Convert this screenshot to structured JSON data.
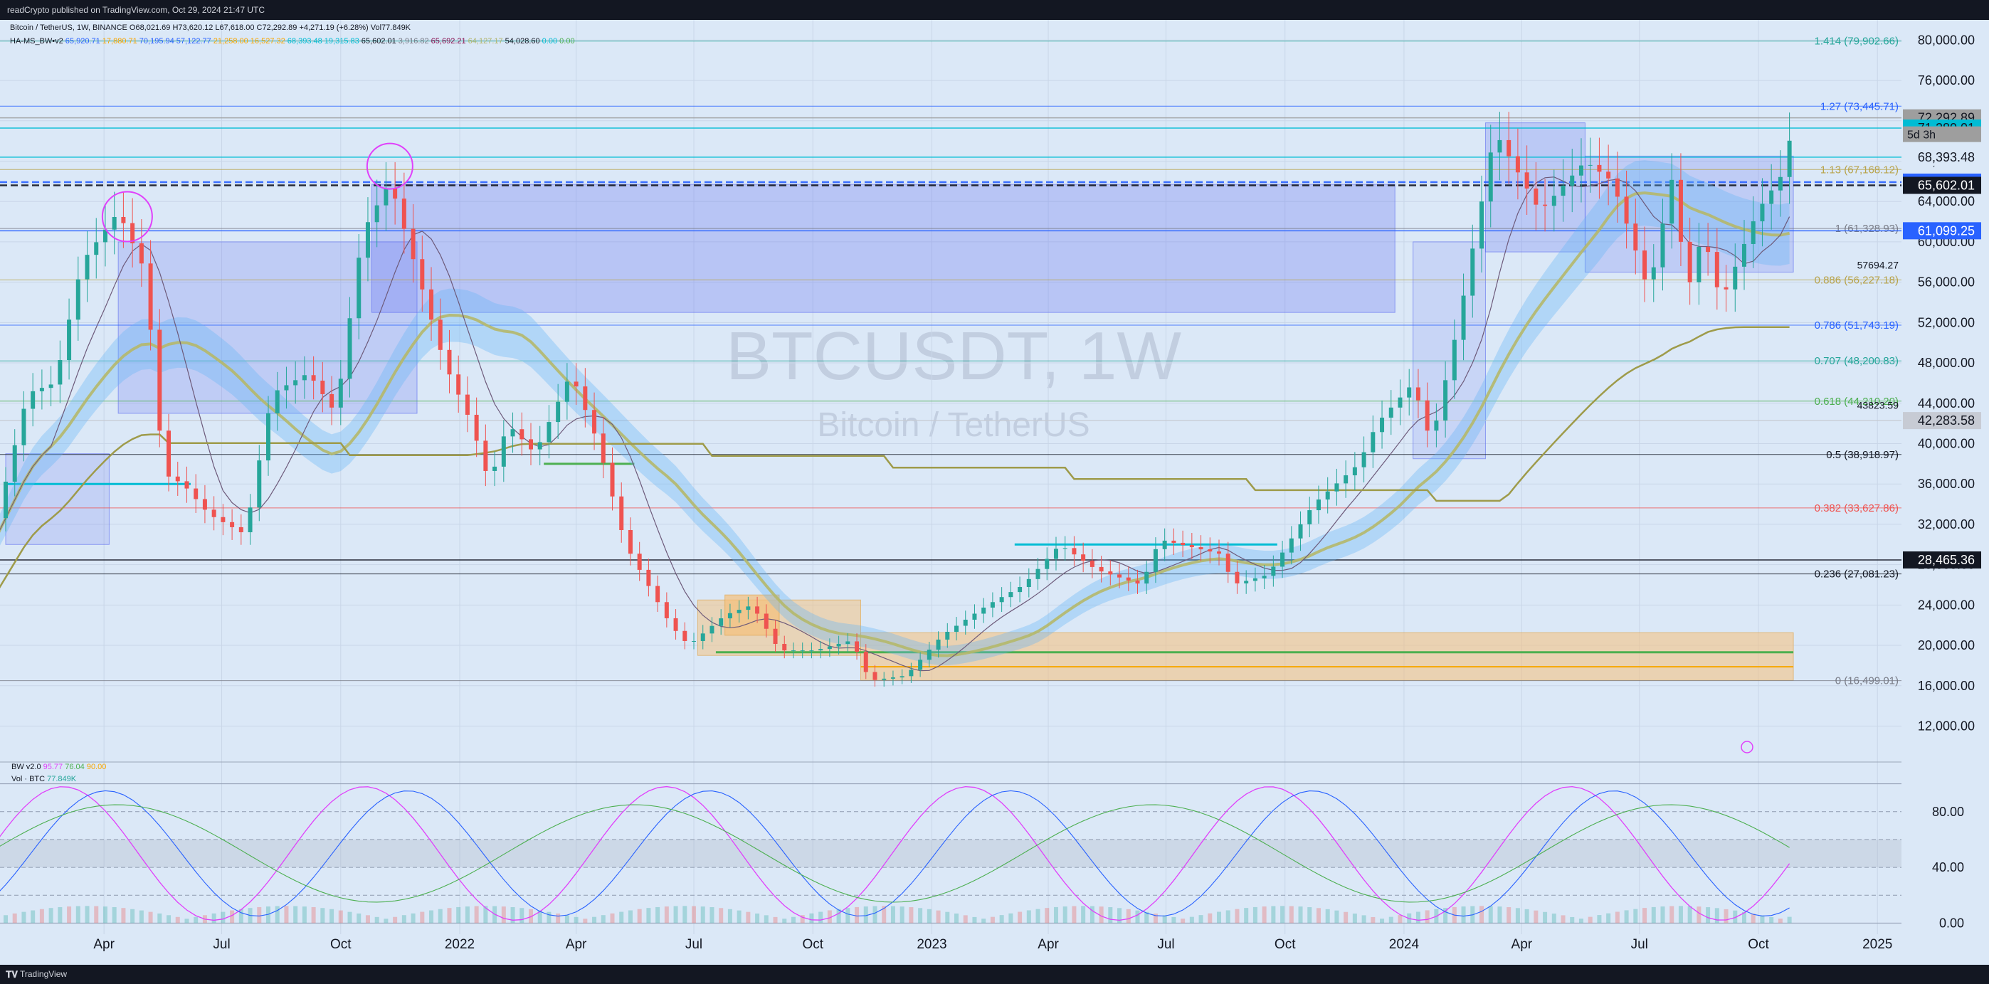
{
  "header": {
    "published": "readCrypto published on TradingView.com, Oct 29, 2024 21:47 UTC",
    "legend_line1_prefix": "Bitcoin / TetherUS, 1W, BINANCE",
    "legend_line1_ohlc": "O68,021.69 H73,620.12 L67,618.00 C72,292.89 +4,271.19 (+6.28%) Vol77.849K",
    "legend_line2_prefix": "HA-MS_BW•v2",
    "legend_line2_values": [
      {
        "text": "65,920.71",
        "color": "#2962ff"
      },
      {
        "text": "17,880.71",
        "color": "#f7a600"
      },
      {
        "text": "70,195.94",
        "color": "#2962ff"
      },
      {
        "text": "57,122.77",
        "color": "#2962ff"
      },
      {
        "text": "21,258.00",
        "color": "#f7a600"
      },
      {
        "text": "16,527.32",
        "color": "#f7a600"
      },
      {
        "text": "68,393.48",
        "color": "#00bcd4"
      },
      {
        "text": "19,315.83",
        "color": "#00bcd4"
      },
      {
        "text": "65,602.01",
        "color": "#131722"
      },
      {
        "text": "3,916.82",
        "color": "#787b86"
      },
      {
        "text": "65,692.21",
        "color": "#880e4f"
      },
      {
        "text": "64,127.17",
        "color": "#b2b56b"
      },
      {
        "text": "54,028.60",
        "color": "#131722"
      },
      {
        "text": "0.00",
        "color": "#00bcd4"
      },
      {
        "text": "0.00",
        "color": "#4caf50"
      }
    ]
  },
  "footer": {
    "brand": "TradingView"
  },
  "colors": {
    "background": "#dbe8f7",
    "up_candle": "#26a69a",
    "down_candle": "#ef5350",
    "ma_yellow": "#b5b86a",
    "cloud_blue": "#64b5f6",
    "cloud_red": "#ef9a9a",
    "box_blue": "#5c6bf0",
    "box_orange": "#f5c07a",
    "magenta": "#e040fb"
  },
  "watermark": {
    "symbol": "BTCUSDT, 1W",
    "name": "Bitcoin / TetherUS"
  },
  "chart_data": {
    "type": "candlestick",
    "symbol": "BTCUSDT",
    "interval": "1W",
    "ylim": [
      9000,
      82000
    ],
    "y_ticks": [
      "80,000.00",
      "76,000.00",
      "72,000.00",
      "68,000.00",
      "64,000.00",
      "60,000.00",
      "56,000.00",
      "52,000.00",
      "48,000.00",
      "44,000.00",
      "40,000.00",
      "36,000.00",
      "32,000.00",
      "28,000.00",
      "24,000.00",
      "20,000.00",
      "16,000.00",
      "12,000.00"
    ],
    "y_tick_values": [
      80000,
      76000,
      72000,
      68000,
      64000,
      60000,
      56000,
      52000,
      48000,
      44000,
      40000,
      36000,
      32000,
      28000,
      24000,
      20000,
      16000,
      12000
    ],
    "x_labels": [
      {
        "label": "Apr",
        "date": "2021-04-01"
      },
      {
        "label": "Jul",
        "date": "2021-07-01"
      },
      {
        "label": "Oct",
        "date": "2021-10-01"
      },
      {
        "label": "2022",
        "date": "2022-01-01"
      },
      {
        "label": "Apr",
        "date": "2022-04-01"
      },
      {
        "label": "Jul",
        "date": "2022-07-01"
      },
      {
        "label": "Oct",
        "date": "2022-10-01"
      },
      {
        "label": "2023",
        "date": "2023-01-01"
      },
      {
        "label": "Apr",
        "date": "2023-04-01"
      },
      {
        "label": "Jul",
        "date": "2023-07-01"
      },
      {
        "label": "Oct",
        "date": "2023-10-01"
      },
      {
        "label": "2024",
        "date": "2024-01-01"
      },
      {
        "label": "Apr",
        "date": "2024-04-01"
      },
      {
        "label": "Jul",
        "date": "2024-07-01"
      },
      {
        "label": "Oct",
        "date": "2024-10-01"
      },
      {
        "label": "2025",
        "date": "2025-01-01"
      }
    ],
    "price_path": [
      [
        "2021-01-01",
        29000
      ],
      [
        "2021-02-01",
        45000
      ],
      [
        "2021-02-22",
        46000
      ],
      [
        "2021-03-15",
        58000
      ],
      [
        "2021-04-12",
        63000
      ],
      [
        "2021-05-03",
        57000
      ],
      [
        "2021-05-17",
        37000
      ],
      [
        "2021-06-01",
        36000
      ],
      [
        "2021-06-21",
        33000
      ],
      [
        "2021-07-19",
        31000
      ],
      [
        "2021-08-09",
        45000
      ],
      [
        "2021-09-06",
        47000
      ],
      [
        "2021-09-27",
        43000
      ],
      [
        "2021-10-18",
        61000
      ],
      [
        "2021-11-08",
        66000
      ],
      [
        "2021-11-29",
        57000
      ],
      [
        "2021-12-20",
        48000
      ],
      [
        "2022-01-10",
        42000
      ],
      [
        "2022-01-24",
        36000
      ],
      [
        "2022-02-07",
        42000
      ],
      [
        "2022-02-28",
        39000
      ],
      [
        "2022-03-28",
        47000
      ],
      [
        "2022-04-18",
        40000
      ],
      [
        "2022-05-09",
        30000
      ],
      [
        "2022-06-13",
        22000
      ],
      [
        "2022-06-27",
        20000
      ],
      [
        "2022-07-25",
        23000
      ],
      [
        "2022-08-15",
        24000
      ],
      [
        "2022-09-05",
        19500
      ],
      [
        "2022-10-03",
        19500
      ],
      [
        "2022-10-31",
        20500
      ],
      [
        "2022-11-14",
        16500
      ],
      [
        "2022-12-12",
        17000
      ],
      [
        "2023-01-09",
        21000
      ],
      [
        "2023-02-13",
        24000
      ],
      [
        "2023-03-13",
        26000
      ],
      [
        "2023-04-10",
        30000
      ],
      [
        "2023-05-08",
        27500
      ],
      [
        "2023-06-12",
        26000
      ],
      [
        "2023-06-26",
        30500
      ],
      [
        "2023-08-14",
        29000
      ],
      [
        "2023-08-21",
        26000
      ],
      [
        "2023-09-18",
        27000
      ],
      [
        "2023-10-23",
        34000
      ],
      [
        "2023-11-27",
        38000
      ],
      [
        "2023-12-11",
        42000
      ],
      [
        "2024-01-08",
        46000
      ],
      [
        "2024-01-22",
        40000
      ],
      [
        "2024-02-12",
        52000
      ],
      [
        "2024-03-04",
        66000
      ],
      [
        "2024-03-11",
        71000
      ],
      [
        "2024-04-15",
        63000
      ],
      [
        "2024-05-20",
        68000
      ],
      [
        "2024-06-10",
        66000
      ],
      [
        "2024-07-01",
        58000
      ],
      [
        "2024-07-08",
        55000
      ],
      [
        "2024-07-29",
        68000
      ],
      [
        "2024-08-05",
        54000
      ],
      [
        "2024-08-19",
        61000
      ],
      [
        "2024-09-02",
        54000
      ],
      [
        "2024-09-30",
        63000
      ],
      [
        "2024-10-21",
        67000
      ],
      [
        "2024-10-28",
        72292.89
      ]
    ],
    "last_close": 72292.89,
    "countdown": "5d 3h",
    "fib_levels": [
      {
        "label": "1.414 (79,902.66)",
        "value": 79902.66,
        "color": "#26a69a"
      },
      {
        "label": "1.27 (73,445.71)",
        "value": 73445.71,
        "color": "#2962ff"
      },
      {
        "label": "1.13 (67,168.12)",
        "value": 67168.12,
        "color": "#b8a34a"
      },
      {
        "label": "1 (61,328.93)",
        "value": 61328.93,
        "color": "#787b86"
      },
      {
        "label": "0.886 (56,227.18)",
        "value": 56227.18,
        "color": "#b8a34a"
      },
      {
        "label": "0.786 (51,743.19)",
        "value": 51743.19,
        "color": "#2962ff"
      },
      {
        "label": "0.707 (48,200.83)",
        "value": 48200.83,
        "color": "#26a69a"
      },
      {
        "label": "0.618 (44,210.20)",
        "value": 44210.2,
        "color": "#4caf50"
      },
      {
        "label": "0.5 (38,918.97)",
        "value": 38918.97,
        "color": "#131722"
      },
      {
        "label": "0.382 (33,627.86)",
        "value": 33627.86,
        "color": "#ef5350"
      },
      {
        "label": "0.236 (27,081.23)",
        "value": 27081.23,
        "color": "#131722"
      },
      {
        "label": "0 (16,499.01)",
        "value": 16499.01,
        "color": "#787b86"
      }
    ],
    "price_badges": [
      {
        "text": "72,292.89",
        "value": 72292.89,
        "bg": "#9e9e9e",
        "fg": "#131722"
      },
      {
        "text": "71,280.01",
        "value": 71280.01,
        "bg": "#00bcd4",
        "fg": "#131722"
      },
      {
        "text": "68,393.48",
        "value": 68393.48,
        "bg": "#dbe8f7",
        "fg": "#131722"
      },
      {
        "text": "65,920.71",
        "value": 65920.71,
        "bg": "#2962ff",
        "fg": "#ffffff"
      },
      {
        "text": "65,602.01",
        "value": 65602.01,
        "bg": "#131722",
        "fg": "#ffffff"
      },
      {
        "text": "61,099.25",
        "value": 61099.25,
        "bg": "#2962ff",
        "fg": "#ffffff"
      },
      {
        "text": "42,283.58",
        "value": 42283.58,
        "bg": "#c7cbd4",
        "fg": "#131722"
      },
      {
        "text": "28,465.36",
        "value": 28465.36,
        "bg": "#131722",
        "fg": "#ffffff"
      }
    ],
    "annotations": [
      {
        "text": "57694.27",
        "value": 57694.27,
        "date": "2024-07-15"
      },
      {
        "text": "43823.59",
        "value": 43823.59,
        "date": "2024-07-15"
      }
    ],
    "indicator_legend": {
      "bw_name": "BW v2.0",
      "bw_values": [
        {
          "text": "95.77",
          "color": "#e040fb"
        },
        {
          "text": "76.04",
          "color": "#4caf50"
        },
        {
          "text": "90.00",
          "color": "#f7a600"
        }
      ],
      "vol_name": "Vol · BTC",
      "vol_value": "77.849K"
    },
    "osc_ylim": [
      -8,
      108
    ],
    "osc_ticks": [
      "80.00",
      "40.00",
      "0.00"
    ],
    "osc_tick_values": [
      80,
      40,
      0
    ]
  }
}
